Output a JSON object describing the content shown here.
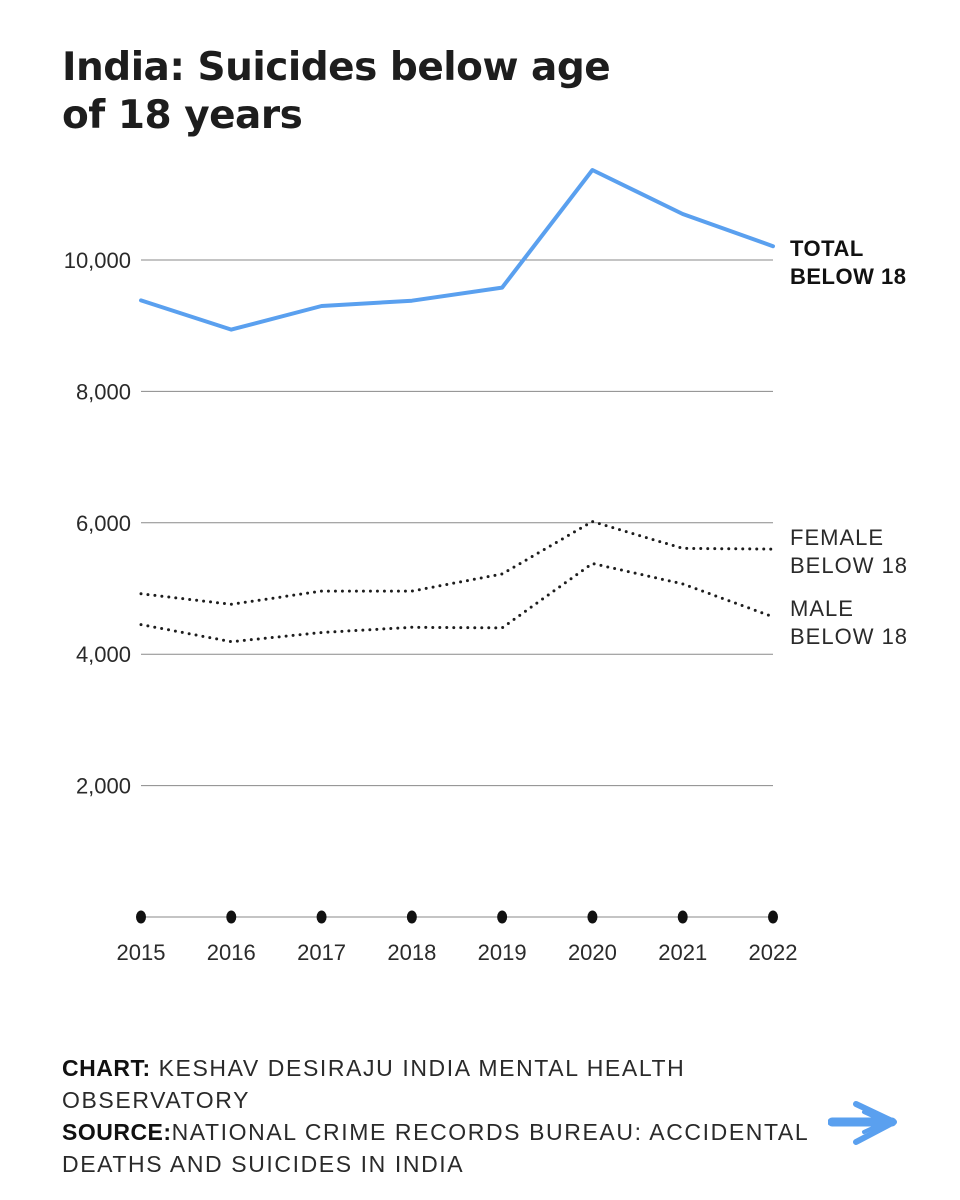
{
  "header": {
    "title": "India: Suicides below age of 18 years"
  },
  "chart_data": {
    "type": "line",
    "title": "India: Suicides below age of 18 years",
    "xlabel": "",
    "ylabel": "",
    "x": [
      "2015",
      "2016",
      "2017",
      "2018",
      "2019",
      "2020",
      "2021",
      "2022"
    ],
    "ylim": [
      0,
      11500
    ],
    "yticks": [
      2000,
      4000,
      6000,
      8000,
      10000
    ],
    "ytick_labels": [
      "2,000",
      "4,000",
      "6,000",
      "8,000",
      "10,000"
    ],
    "grid": true,
    "series": [
      {
        "name": "TOTAL BELOW 18",
        "label_lines": [
          "TOTAL",
          "BELOW 18"
        ],
        "style": "solid",
        "color": "#5aa0ef",
        "values": [
          9385,
          8940,
          9300,
          9380,
          9580,
          11370,
          10700,
          10210
        ]
      },
      {
        "name": "FEMALE BELOW 18",
        "label_lines": [
          "FEMALE",
          "BELOW 18"
        ],
        "style": "dotted",
        "color": "#1d1d1d",
        "values": [
          4920,
          4760,
          4960,
          4960,
          5220,
          6020,
          5610,
          5600
        ]
      },
      {
        "name": "MALE BELOW 18",
        "label_lines": [
          "MALE",
          "BELOW 18"
        ],
        "style": "dotted",
        "color": "#1d1d1d",
        "values": [
          4450,
          4190,
          4330,
          4410,
          4400,
          5380,
          5070,
          4570
        ]
      }
    ]
  },
  "footer": {
    "chart_label": "CHART:",
    "chart_text": "KESHAV DESIRAJU INDIA MENTAL HEALTH OBSERVATORY",
    "source_label": "SOURCE:",
    "source_text": "NATIONAL CRIME RECORDS BUREAU: ACCIDENTAL DEATHS AND SUICIDES IN INDIA"
  },
  "colors": {
    "accent": "#5aa0ef",
    "text": "#1d1d1d",
    "grid": "#8a8a8a"
  },
  "icons": {
    "next": "arrow-right-icon"
  }
}
